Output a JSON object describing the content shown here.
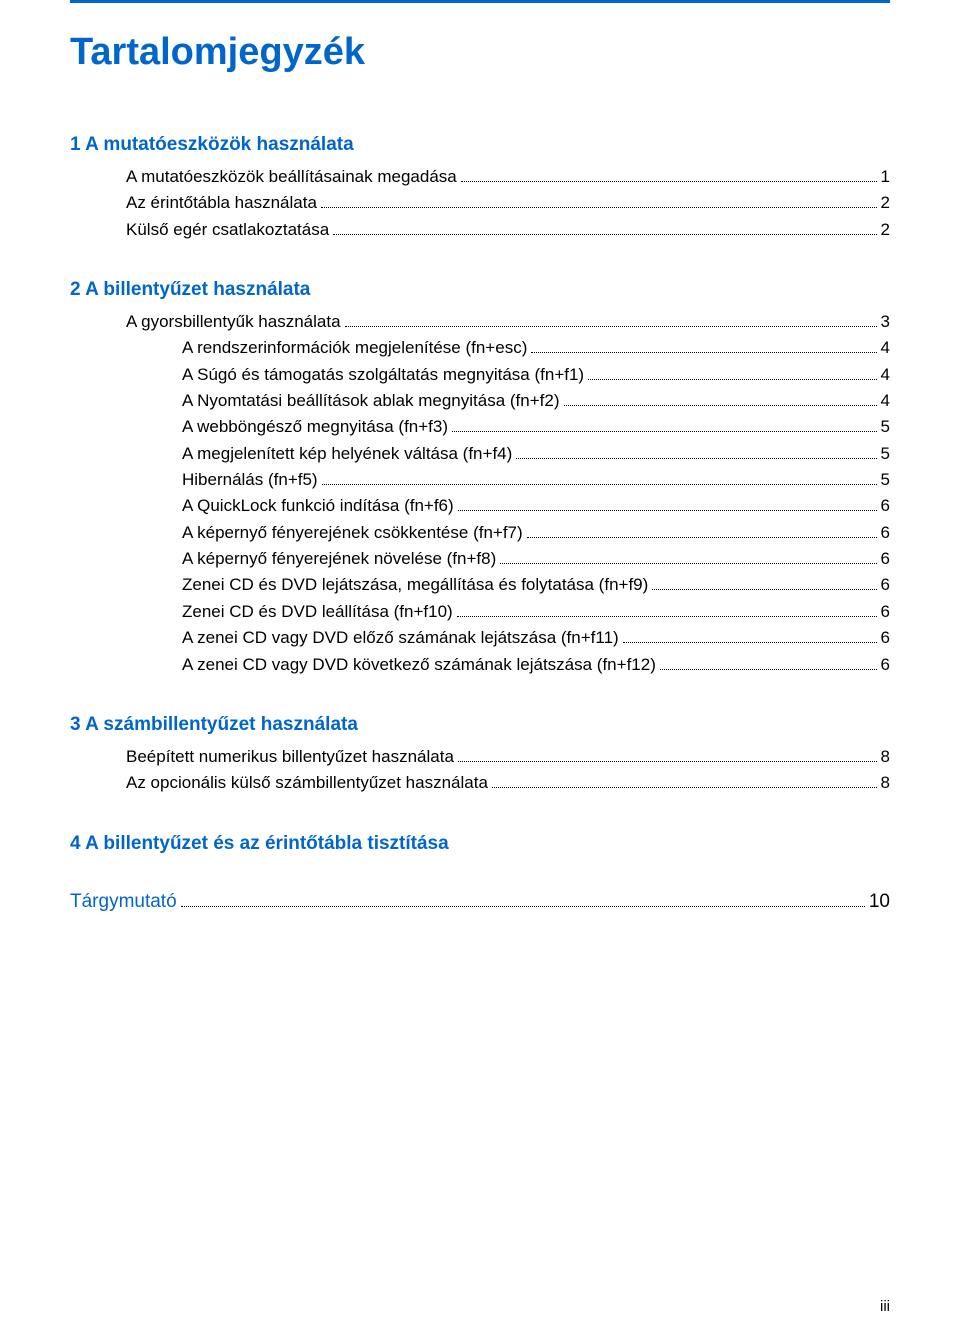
{
  "colors": {
    "accent": "#0066cc",
    "text": "#000000",
    "rule": "#0066cc"
  },
  "title": "Tartalomjegyzék",
  "sections": [
    {
      "heading": "1  A mutatóeszközök használata",
      "entries": [
        {
          "label": "A mutatóeszközök beállításainak megadása",
          "page": "1",
          "indent": 1
        },
        {
          "label": "Az érintőtábla használata",
          "page": "2",
          "indent": 1
        },
        {
          "label": "Külső egér csatlakoztatása",
          "page": "2",
          "indent": 1
        }
      ]
    },
    {
      "heading": "2  A billentyűzet használata",
      "entries": [
        {
          "label": "A gyorsbillentyűk használata",
          "page": "3",
          "indent": 1
        },
        {
          "label": "A rendszerinformációk megjelenítése (fn+esc)",
          "page": "4",
          "indent": 2
        },
        {
          "label": "A Súgó és támogatás szolgáltatás megnyitása (fn+f1)",
          "page": "4",
          "indent": 2
        },
        {
          "label": "A Nyomtatási beállítások ablak megnyitása (fn+f2)",
          "page": "4",
          "indent": 2
        },
        {
          "label": "A webböngésző megnyitása (fn+f3)",
          "page": "5",
          "indent": 2
        },
        {
          "label": "A megjelenített kép helyének váltása (fn+f4)",
          "page": "5",
          "indent": 2
        },
        {
          "label": "Hibernálás (fn+f5)",
          "page": "5",
          "indent": 2
        },
        {
          "label": "A QuickLock funkció indítása (fn+f6)",
          "page": "6",
          "indent": 2
        },
        {
          "label": "A képernyő fényerejének csökkentése (fn+f7)",
          "page": "6",
          "indent": 2
        },
        {
          "label": "A képernyő fényerejének növelése (fn+f8)",
          "page": "6",
          "indent": 2
        },
        {
          "label": "Zenei CD és DVD lejátszása, megállítása és folytatása (fn+f9)",
          "page": "6",
          "indent": 2
        },
        {
          "label": "Zenei CD és DVD leállítása (fn+f10)",
          "page": "6",
          "indent": 2
        },
        {
          "label": "A zenei CD vagy DVD előző számának lejátszása (fn+f11)",
          "page": "6",
          "indent": 2
        },
        {
          "label": "A zenei CD vagy DVD következő számának lejátszása (fn+f12)",
          "page": "6",
          "indent": 2
        }
      ]
    },
    {
      "heading": "3  A számbillentyűzet használata",
      "entries": [
        {
          "label": "Beépített numerikus billentyűzet használata",
          "page": "8",
          "indent": 1
        },
        {
          "label": "Az opcionális külső számbillentyűzet használata",
          "page": "8",
          "indent": 1
        }
      ]
    }
  ],
  "standalone_heading": "4  A billentyűzet és az érintőtábla tisztítása",
  "index_entry": {
    "label": "Tárgymutató",
    "page": "10"
  },
  "footer": "iii"
}
